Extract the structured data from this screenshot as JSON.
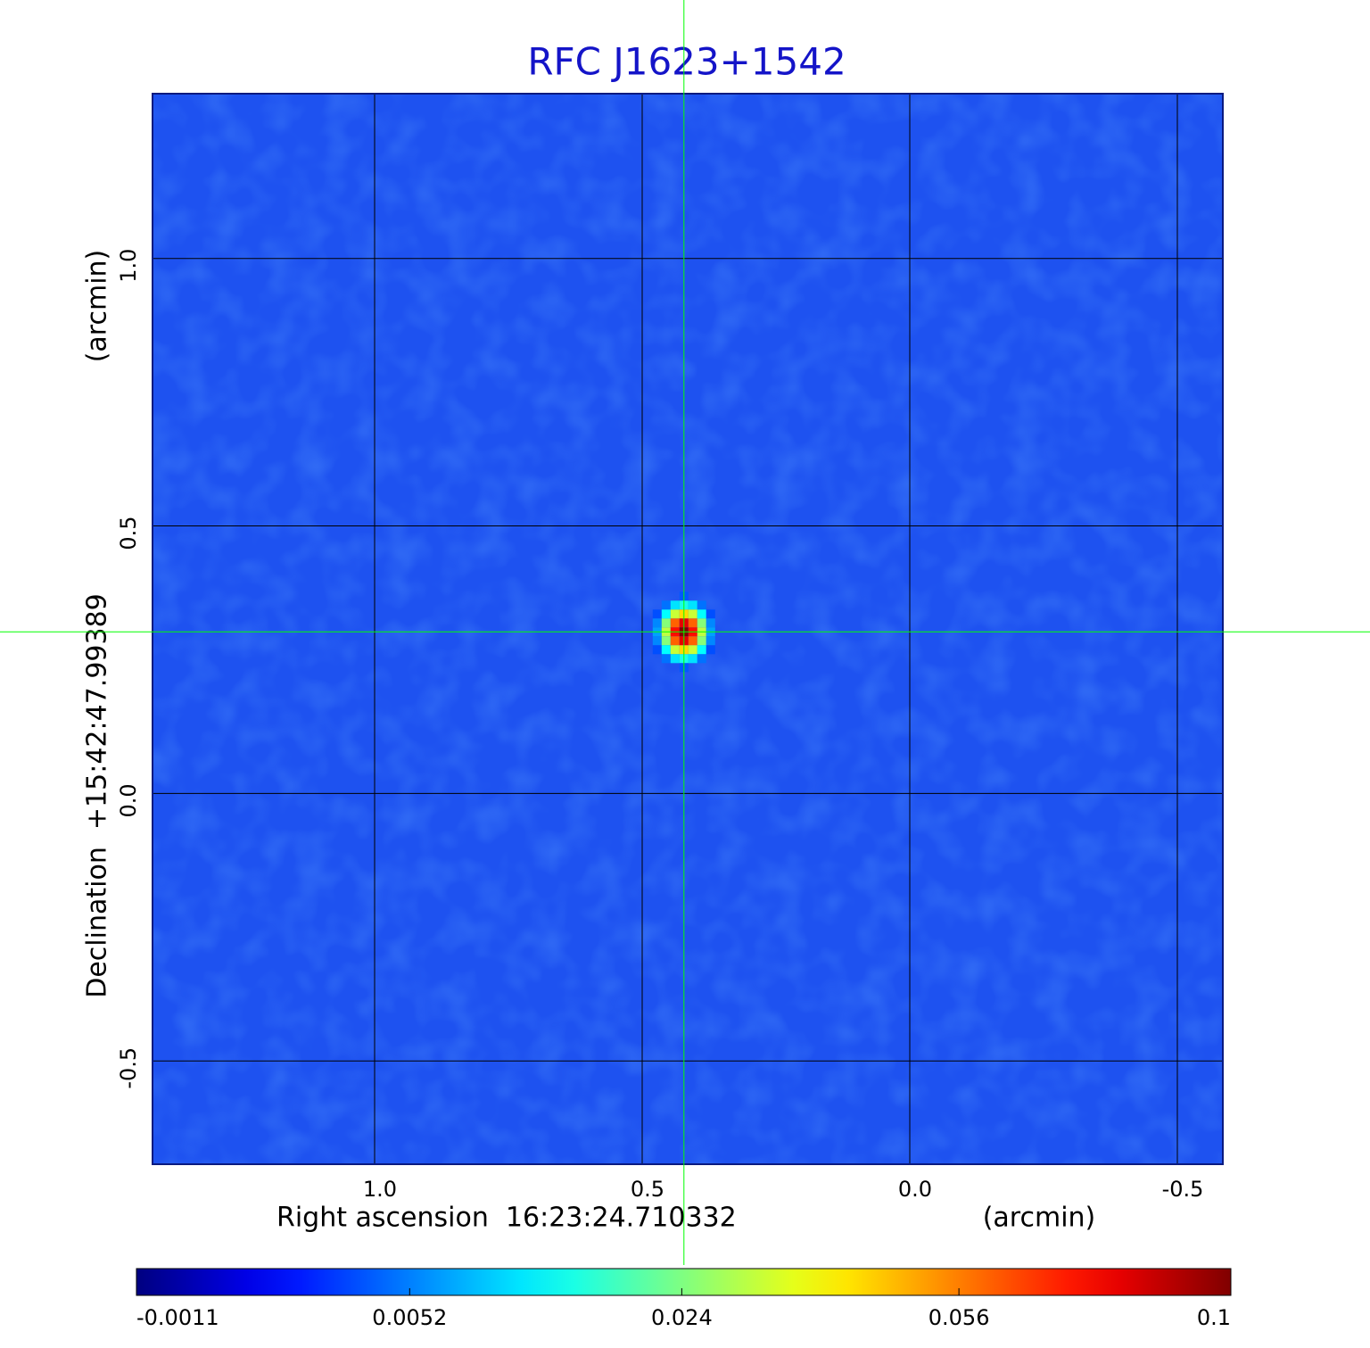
{
  "chart_data": {
    "type": "image",
    "title": "RFC J1623+1542",
    "x_label": "Right ascension  16:23:24.710332",
    "x_unit": "(arcmin)",
    "y_label": "Declination  +15:42:47.99389",
    "y_unit": "(arcmin)",
    "xlim": [
      1.415,
      -0.585
    ],
    "ylim": [
      -0.693,
      1.308
    ],
    "xticks": [
      {
        "value": 1,
        "label": "1.0"
      },
      {
        "value": 0.5,
        "label": "0.5"
      },
      {
        "value": 0,
        "label": "0.0"
      },
      {
        "value": -0.5,
        "label": "-0.5"
      }
    ],
    "yticks": [
      {
        "value": 1,
        "label": "1.0"
      },
      {
        "value": 0.5,
        "label": "0.5"
      },
      {
        "value": 0,
        "label": "0.0"
      },
      {
        "value": -0.5,
        "label": "-0.5"
      }
    ],
    "grid": true,
    "background_color": "#1e52f0",
    "source": {
      "x": 0.422,
      "y": 0.302,
      "peak": 0.1
    },
    "crosshair": {
      "x": 0.422,
      "y": 0.302,
      "color": "#00ff00"
    },
    "colorbar": {
      "lim": [
        -0.0011,
        0.1
      ],
      "ticks": [
        -0.0011,
        0.0052,
        0.024,
        0.056,
        0.1
      ],
      "scale": "sqrt",
      "colormap": "jet"
    }
  }
}
